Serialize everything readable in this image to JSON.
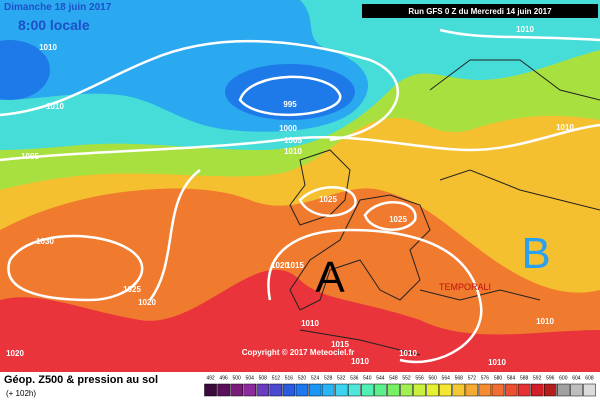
{
  "header": {
    "date": "Dimanche 18 juin 2017",
    "time": "8:00 locale",
    "run": "Run GFS 0 Z du Mercredi 14 juin 2017"
  },
  "isobar_labels": [
    "1010",
    "1010",
    "1010",
    "1005",
    "995",
    "1000",
    "1005",
    "1010",
    "1010",
    "1025",
    "1025",
    "1030",
    "1020",
    "1015",
    "1025",
    "1020",
    "1010",
    "1015",
    "1020",
    "1010",
    "1010",
    "1010",
    "1010"
  ],
  "pressure_centers": [
    "A",
    "B"
  ],
  "annotation": "TEMPORALI",
  "copyright": "Copyright © 2017 Meteociel.fr",
  "footer": {
    "title": "Géop. Z500 & pression au sol",
    "lead": "(+ 102h)"
  },
  "scale": {
    "labels": [
      "492",
      "496",
      "500",
      "504",
      "508",
      "512",
      "516",
      "520",
      "524",
      "528",
      "532",
      "536",
      "540",
      "544",
      "548",
      "552",
      "556",
      "560",
      "564",
      "568",
      "572",
      "576",
      "580",
      "584",
      "588",
      "592",
      "596",
      "600",
      "604",
      "608"
    ],
    "colors": [
      "#3c0a3c",
      "#5a0f5a",
      "#7a1a7a",
      "#8c2a9c",
      "#6a3cc0",
      "#4a4ad0",
      "#2a5ae0",
      "#1e78f0",
      "#1e96f5",
      "#28b4f5",
      "#3cd2f0",
      "#50e6dc",
      "#50f0b4",
      "#5af08c",
      "#78f064",
      "#a0f050",
      "#c8f03c",
      "#e6f032",
      "#f5e632",
      "#f5c832",
      "#f5aa32",
      "#f58c32",
      "#f06e32",
      "#eb5032",
      "#e63232",
      "#d21e28",
      "#b41e1e",
      "#a0a0a0",
      "#bebebe",
      "#dcdcdc"
    ]
  }
}
